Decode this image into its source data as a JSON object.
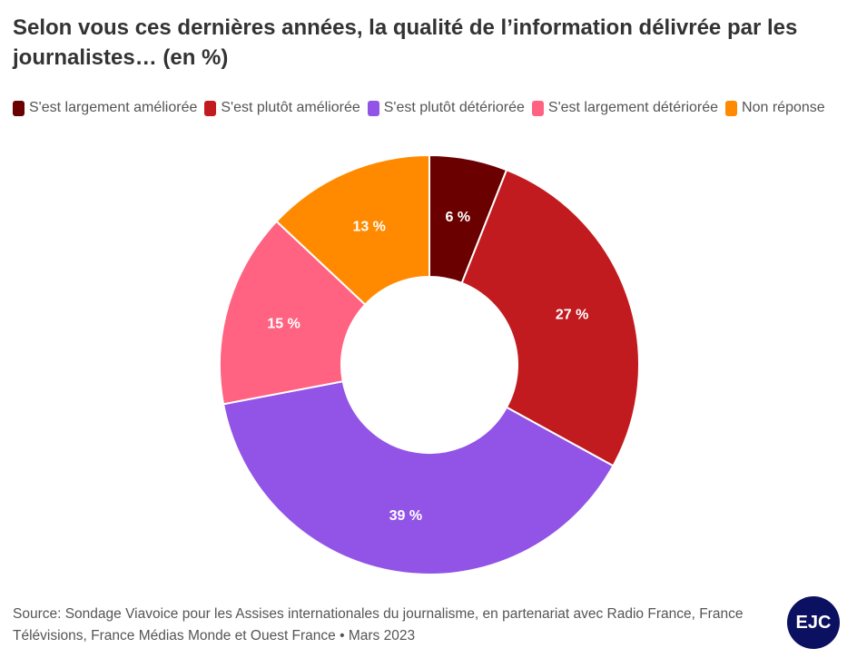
{
  "title": "Selon vous ces dernières années, la qualité de l’information délivrée par les journalistes… (en %)",
  "chart_data": {
    "type": "pie",
    "variant": "donut",
    "categories": [
      "S'est largement améliorée",
      "S'est plutôt améliorée",
      "S'est plutôt détériorée",
      "S'est largement détériorée",
      "Non réponse"
    ],
    "values": [
      6,
      27,
      39,
      15,
      13
    ],
    "labels": [
      "6 %",
      "27 %",
      "39 %",
      "15 %",
      "13 %"
    ],
    "colors": [
      "#6b0000",
      "#c11b1f",
      "#9254e6",
      "#ff6381",
      "#ff8a00"
    ],
    "legend_position": "top"
  },
  "source": "Source: Sondage Viavoice pour les Assises internationales du journalisme, en partenariat avec Radio France, France Télévisions, France Médias Monde et Ouest France • Mars 2023",
  "logo": "EJC"
}
